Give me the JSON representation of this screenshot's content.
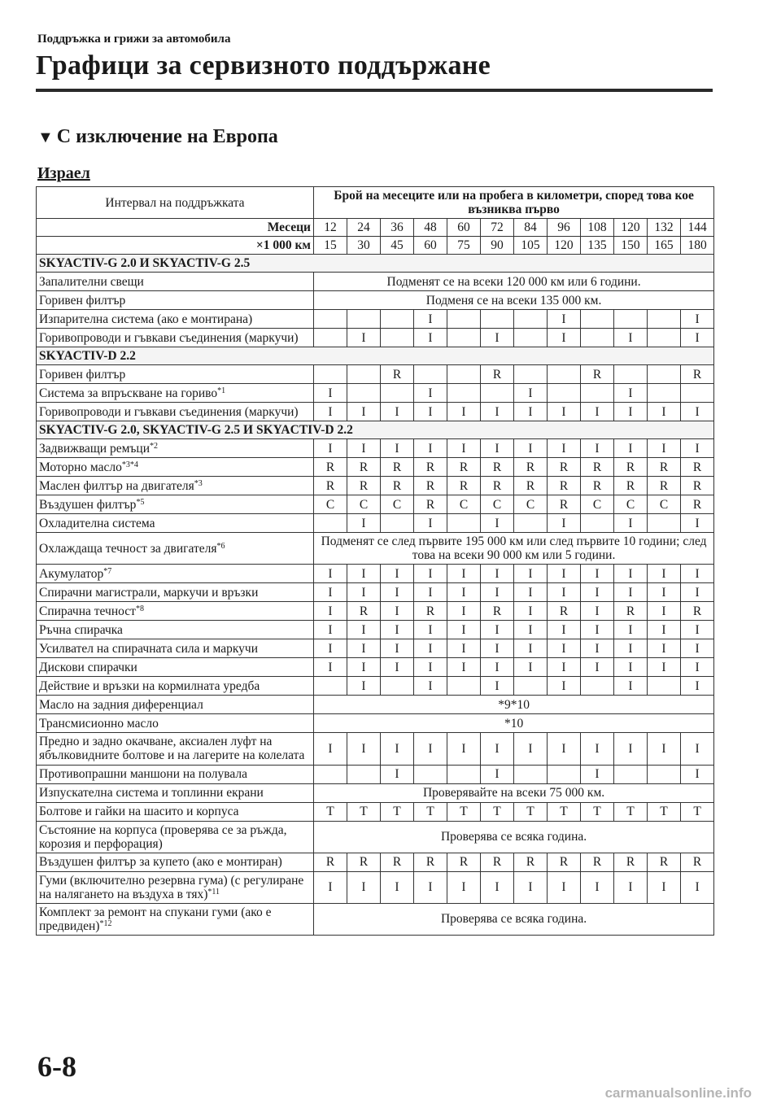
{
  "breadcrumb": "Поддръжка и грижи за автомобила",
  "page_title": "Графици за сервизното поддържане",
  "section_marker": "▼",
  "section_title": "С изключение на Европа",
  "region": "Израел",
  "table": {
    "interval_label": "Интервал на поддръжката",
    "header_main": "Брой на месеците или на пробега в километри, според това кое възниква първо",
    "months_label": "Месеци",
    "months": [
      "12",
      "24",
      "36",
      "48",
      "60",
      "72",
      "84",
      "96",
      "108",
      "120",
      "132",
      "144"
    ],
    "km_label": "×1 000 км",
    "km": [
      "15",
      "30",
      "45",
      "60",
      "75",
      "90",
      "105",
      "120",
      "135",
      "150",
      "165",
      "180"
    ],
    "rows": [
      {
        "section": "SKYACTIV-G 2.0 И SKYACTIV-G 2.5"
      },
      {
        "name": "Запалителни свещи",
        "span": "Подменят се на всеки 120 000 км или 6 години."
      },
      {
        "name": "Горивен филтър",
        "span": "Подменя се на всеки 135 000 км."
      },
      {
        "name": "Изпарителна система (ако е монтирана)",
        "values": [
          "",
          "",
          "",
          "I",
          "",
          "",
          "",
          "I",
          "",
          "",
          "",
          "I"
        ]
      },
      {
        "name": "Горивопроводи и гъвкави съединения (маркучи)",
        "values": [
          "",
          "I",
          "",
          "I",
          "",
          "I",
          "",
          "I",
          "",
          "I",
          "",
          "I"
        ]
      },
      {
        "section": "SKYACTIV-D 2.2"
      },
      {
        "name": "Горивен филтър",
        "values": [
          "",
          "",
          "R",
          "",
          "",
          "R",
          "",
          "",
          "R",
          "",
          "",
          "R"
        ]
      },
      {
        "name": "Система за впръскване на гориво",
        "note": "*1",
        "values": [
          "I",
          "",
          "",
          "I",
          "",
          "",
          "I",
          "",
          "",
          "I",
          "",
          ""
        ]
      },
      {
        "name": "Горивопроводи и гъвкави съединения (маркучи)",
        "values": [
          "I",
          "I",
          "I",
          "I",
          "I",
          "I",
          "I",
          "I",
          "I",
          "I",
          "I",
          "I"
        ]
      },
      {
        "section": "SKYACTIV-G 2.0, SKYACTIV-G 2.5 И SKYACTIV-D 2.2"
      },
      {
        "name": "Задвижващи ремъци",
        "note": "*2",
        "values": [
          "I",
          "I",
          "I",
          "I",
          "I",
          "I",
          "I",
          "I",
          "I",
          "I",
          "I",
          "I"
        ]
      },
      {
        "name": "Моторно масло",
        "note": "*3*4",
        "values": [
          "R",
          "R",
          "R",
          "R",
          "R",
          "R",
          "R",
          "R",
          "R",
          "R",
          "R",
          "R"
        ]
      },
      {
        "name": "Маслен филтър на двигателя",
        "note": "*3",
        "values": [
          "R",
          "R",
          "R",
          "R",
          "R",
          "R",
          "R",
          "R",
          "R",
          "R",
          "R",
          "R"
        ]
      },
      {
        "name": "Въздушен филтър",
        "note": "*5",
        "values": [
          "C",
          "C",
          "C",
          "R",
          "C",
          "C",
          "C",
          "R",
          "C",
          "C",
          "C",
          "R"
        ]
      },
      {
        "name": "Охладителна система",
        "values": [
          "",
          "I",
          "",
          "I",
          "",
          "I",
          "",
          "I",
          "",
          "I",
          "",
          "I"
        ]
      },
      {
        "name": "Охлаждаща течност за двигателя",
        "note": "*6",
        "span": "Подменят се след първите 195 000 км или след първите 10 години; след това на всеки 90 000 км или 5 години."
      },
      {
        "name": "Акумулатор",
        "note": "*7",
        "values": [
          "I",
          "I",
          "I",
          "I",
          "I",
          "I",
          "I",
          "I",
          "I",
          "I",
          "I",
          "I"
        ]
      },
      {
        "name": "Спирачни магистрали, маркучи и връзки",
        "values": [
          "I",
          "I",
          "I",
          "I",
          "I",
          "I",
          "I",
          "I",
          "I",
          "I",
          "I",
          "I"
        ]
      },
      {
        "name": "Спирачна течност",
        "note": "*8",
        "values": [
          "I",
          "R",
          "I",
          "R",
          "I",
          "R",
          "I",
          "R",
          "I",
          "R",
          "I",
          "R"
        ]
      },
      {
        "name": "Ръчна спирачка",
        "values": [
          "I",
          "I",
          "I",
          "I",
          "I",
          "I",
          "I",
          "I",
          "I",
          "I",
          "I",
          "I"
        ]
      },
      {
        "name": "Усилвател на спирачната сила и маркучи",
        "values": [
          "I",
          "I",
          "I",
          "I",
          "I",
          "I",
          "I",
          "I",
          "I",
          "I",
          "I",
          "I"
        ]
      },
      {
        "name": "Дискови спирачки",
        "values": [
          "I",
          "I",
          "I",
          "I",
          "I",
          "I",
          "I",
          "I",
          "I",
          "I",
          "I",
          "I"
        ]
      },
      {
        "name": "Действие и връзки на кормилната уредба",
        "values": [
          "",
          "I",
          "",
          "I",
          "",
          "I",
          "",
          "I",
          "",
          "I",
          "",
          "I"
        ]
      },
      {
        "name": "Масло на задния диференциал",
        "span": "*9*10"
      },
      {
        "name": "Трансмисионно масло",
        "span": "*10"
      },
      {
        "name": "Предно и задно окачване, аксиален луфт на ябълковидните болтове и на лагерите на колелата",
        "values": [
          "I",
          "I",
          "I",
          "I",
          "I",
          "I",
          "I",
          "I",
          "I",
          "I",
          "I",
          "I"
        ]
      },
      {
        "name": "Противопрашни маншони на полувала",
        "values": [
          "",
          "",
          "I",
          "",
          "",
          "I",
          "",
          "",
          "I",
          "",
          "",
          "I"
        ]
      },
      {
        "name": "Изпускателна система и топлинни екрани",
        "span": "Проверявайте на всеки 75 000 км."
      },
      {
        "name": "Болтове и гайки на шасито и корпуса",
        "values": [
          "T",
          "T",
          "T",
          "T",
          "T",
          "T",
          "T",
          "T",
          "T",
          "T",
          "T",
          "T"
        ]
      },
      {
        "name": "Състояние на корпуса (проверява се за ръжда, корозия и перфорация)",
        "span": "Проверява се всяка година."
      },
      {
        "name": "Въздушен филтър за купето (ако е монтиран)",
        "values": [
          "R",
          "R",
          "R",
          "R",
          "R",
          "R",
          "R",
          "R",
          "R",
          "R",
          "R",
          "R"
        ]
      },
      {
        "name": "Гуми (включително резервна гума) (с регулиране на налягането на въздуха в тях)",
        "note": "*11",
        "values": [
          "I",
          "I",
          "I",
          "I",
          "I",
          "I",
          "I",
          "I",
          "I",
          "I",
          "I",
          "I"
        ]
      },
      {
        "name": "Комплект за ремонт на спукани гуми (ако е предвиден)",
        "note": "*12",
        "span": "Проверява се всяка година."
      }
    ]
  },
  "page_number": "6-8",
  "watermark": "carmanualsonline.info"
}
